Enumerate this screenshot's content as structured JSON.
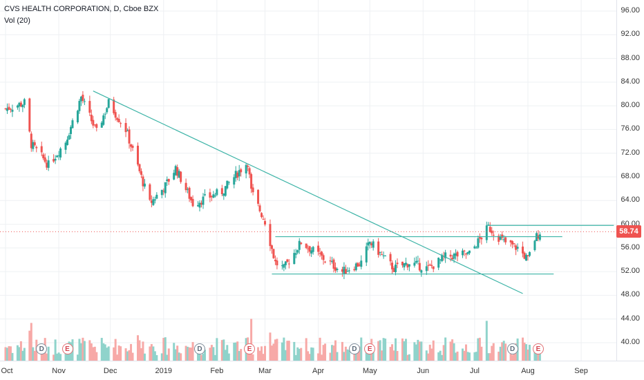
{
  "legend": {
    "title": "CVS HEALTH CORPORATION, D, Cboe BZX",
    "indicator": "Vol (20)"
  },
  "last_price": "58.74",
  "colors": {
    "up": "#26a69a",
    "down": "#ef5350",
    "vol_up": "#8fd3cb",
    "vol_down": "#f7a9a7",
    "trend": "#3bb3a6",
    "grid": "#eef0f3",
    "badge": "#ef5350"
  },
  "chart_data": {
    "type": "candlestick",
    "symbol": "CVS",
    "price_axis_ticks": [
      "96.00",
      "92.00",
      "88.00",
      "84.00",
      "80.00",
      "76.00",
      "72.00",
      "68.00",
      "64.00",
      "60.00",
      "56.00",
      "52.00",
      "48.00",
      "44.00",
      "40.00"
    ],
    "ylim": [
      36,
      98
    ],
    "time_axis_ticks": [
      "Oct",
      "Nov",
      "Dec",
      "2019",
      "Feb",
      "Mar",
      "Apr",
      "May",
      "Jun",
      "Jul",
      "Aug",
      "Sep"
    ],
    "events": [
      {
        "type": "D",
        "date": "2018-10-22"
      },
      {
        "type": "E",
        "date": "2018-11-06"
      },
      {
        "type": "D",
        "date": "2019-01-22"
      },
      {
        "type": "E",
        "date": "2019-02-20"
      },
      {
        "type": "D",
        "date": "2019-04-22"
      },
      {
        "type": "E",
        "date": "2019-05-01"
      },
      {
        "type": "D",
        "date": "2019-07-23"
      },
      {
        "type": "E",
        "date": "2019-08-07"
      }
    ],
    "trendlines": [
      {
        "name": "downtrend",
        "from": [
          "2018-11-21",
          82.5
        ],
        "to": [
          "2019-07-29",
          48.3
        ]
      },
      {
        "name": "resistance",
        "from": [
          "2019-03-07",
          57.9
        ],
        "to": [
          "2019-08-21",
          57.9
        ]
      },
      {
        "name": "support",
        "from": [
          "2019-03-05",
          51.6
        ],
        "to": [
          "2019-08-16",
          51.6
        ]
      },
      {
        "name": "upper",
        "from": [
          "2019-07-09",
          59.8
        ],
        "to": [
          "2019-09-20",
          59.8
        ]
      }
    ],
    "key_points": [
      {
        "date": "2018-10-01",
        "close": 79.5
      },
      {
        "date": "2018-10-12",
        "close": 80.5
      },
      {
        "date": "2018-10-16",
        "close": 73.5
      },
      {
        "date": "2018-10-26",
        "close": 70.0
      },
      {
        "date": "2018-11-05",
        "close": 74.0
      },
      {
        "date": "2018-11-14",
        "close": 81.5
      },
      {
        "date": "2018-11-23",
        "close": 75.5
      },
      {
        "date": "2018-11-30",
        "close": 80.5
      },
      {
        "date": "2018-12-10",
        "close": 76.0
      },
      {
        "date": "2018-12-24",
        "close": 63.5
      },
      {
        "date": "2019-01-02",
        "close": 66.5
      },
      {
        "date": "2019-01-08",
        "close": 69.5
      },
      {
        "date": "2019-01-18",
        "close": 63.5
      },
      {
        "date": "2019-02-04",
        "close": 65.5
      },
      {
        "date": "2019-02-14",
        "close": 69.0
      },
      {
        "date": "2019-02-19",
        "close": 70.5
      },
      {
        "date": "2019-02-21",
        "close": 65.5
      },
      {
        "date": "2019-03-01",
        "close": 60.5
      },
      {
        "date": "2019-03-07",
        "close": 53.5
      },
      {
        "date": "2019-03-12",
        "close": 52.5
      },
      {
        "date": "2019-03-22",
        "close": 57.0
      },
      {
        "date": "2019-04-05",
        "close": 54.0
      },
      {
        "date": "2019-04-15",
        "close": 52.0
      },
      {
        "date": "2019-04-26",
        "close": 53.5
      },
      {
        "date": "2019-05-01",
        "close": 57.0
      },
      {
        "date": "2019-05-15",
        "close": 52.5
      },
      {
        "date": "2019-05-24",
        "close": 53.5
      },
      {
        "date": "2019-06-04",
        "close": 52.5
      },
      {
        "date": "2019-06-14",
        "close": 54.5
      },
      {
        "date": "2019-06-28",
        "close": 55.0
      },
      {
        "date": "2019-07-09",
        "close": 59.5
      },
      {
        "date": "2019-07-18",
        "close": 57.0
      },
      {
        "date": "2019-07-26",
        "close": 56.0
      },
      {
        "date": "2019-08-01",
        "close": 54.0
      },
      {
        "date": "2019-08-05",
        "close": 57.5
      },
      {
        "date": "2019-08-08",
        "close": 58.74
      }
    ]
  }
}
